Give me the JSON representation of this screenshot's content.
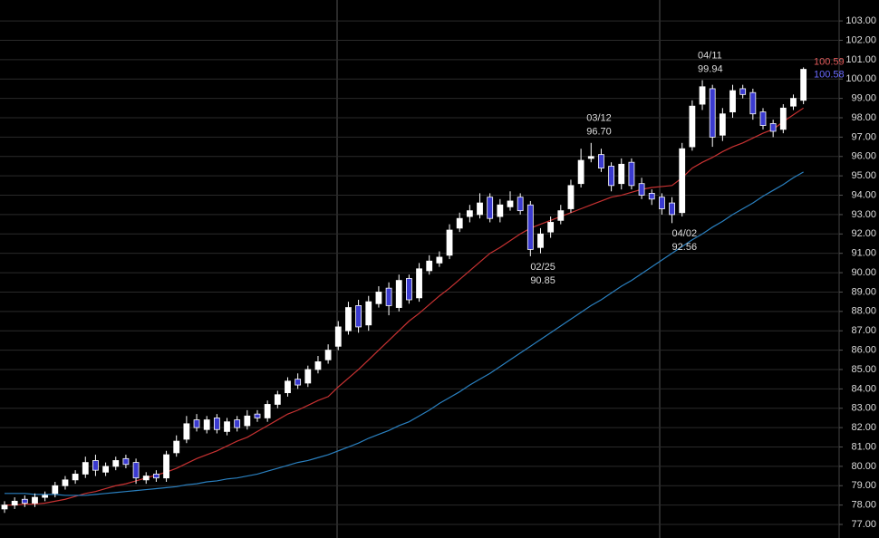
{
  "chart_data": {
    "type": "candlestick",
    "categories": [
      null,
      null,
      null,
      null,
      null,
      null,
      null,
      null,
      null,
      null,
      null,
      null,
      null,
      null,
      null,
      null,
      null,
      null,
      null,
      null,
      null,
      null,
      null,
      null,
      null,
      null,
      null,
      null,
      null,
      null,
      null,
      null,
      null,
      null,
      null,
      null,
      null,
      null,
      null,
      null,
      null,
      null,
      null,
      null,
      null,
      null,
      null,
      null,
      null,
      null,
      null,
      null,
      "02/25",
      null,
      null,
      null,
      null,
      null,
      "03/12",
      null,
      null,
      null,
      null,
      null,
      null,
      null,
      "04/02",
      null,
      null,
      "04/11",
      null,
      null,
      null,
      null,
      null,
      null,
      null,
      null,
      null,
      null
    ],
    "open": [
      77.8,
      78.0,
      78.3,
      78.1,
      78.4,
      78.6,
      79.0,
      79.3,
      79.6,
      80.3,
      79.7,
      80.0,
      80.4,
      80.2,
      79.3,
      79.6,
      79.4,
      80.7,
      81.4,
      82.4,
      81.9,
      82.5,
      81.8,
      82.4,
      82.1,
      82.7,
      82.5,
      83.2,
      83.8,
      84.5,
      84.3,
      85.0,
      85.5,
      86.2,
      87.0,
      88.3,
      87.3,
      88.4,
      89.2,
      88.2,
      89.7,
      88.7,
      90.1,
      90.5,
      90.9,
      92.3,
      92.9,
      93.0,
      93.9,
      92.9,
      93.4,
      93.9,
      93.5,
      91.3,
      92.1,
      92.7,
      93.3,
      94.6,
      95.9,
      96.1,
      95.5,
      94.6,
      95.7,
      94.6,
      94.1,
      93.9,
      93.6,
      93.1,
      96.5,
      98.7,
      99.5,
      97.1,
      98.3,
      99.5,
      99.3,
      98.3,
      97.7,
      97.4,
      98.6,
      98.9
    ],
    "high": [
      78.2,
      78.4,
      78.5,
      78.6,
      78.7,
      79.2,
      79.5,
      79.8,
      80.5,
      80.6,
      80.2,
      80.5,
      80.6,
      80.4,
      79.7,
      79.8,
      80.8,
      81.6,
      82.6,
      82.7,
      82.6,
      82.7,
      82.5,
      82.6,
      82.9,
      82.9,
      83.4,
      83.9,
      84.6,
      84.8,
      85.2,
      85.7,
      86.3,
      87.5,
      88.5,
      88.6,
      88.8,
      89.3,
      89.5,
      89.9,
      89.9,
      90.5,
      90.9,
      91.1,
      92.5,
      93.1,
      93.5,
      94.1,
      94.1,
      93.8,
      94.2,
      94.1,
      93.7,
      92.3,
      92.9,
      93.5,
      94.8,
      96.4,
      96.7,
      96.4,
      95.7,
      95.9,
      95.9,
      94.9,
      94.3,
      94.1,
      93.9,
      96.7,
      98.9,
      99.94,
      99.7,
      98.5,
      99.7,
      99.7,
      99.5,
      98.5,
      97.9,
      98.7,
      99.2,
      100.6
    ],
    "low": [
      77.6,
      77.8,
      77.9,
      77.9,
      78.2,
      78.4,
      78.8,
      79.1,
      79.4,
      79.5,
      79.5,
      79.8,
      79.9,
      79.1,
      79.1,
      79.2,
      79.2,
      80.5,
      81.2,
      81.8,
      81.7,
      81.7,
      81.6,
      81.8,
      81.9,
      82.3,
      82.3,
      83.0,
      83.6,
      84.0,
      84.1,
      84.8,
      85.3,
      86.0,
      86.8,
      86.9,
      87.0,
      88.2,
      87.8,
      88.0,
      88.4,
      88.5,
      89.9,
      90.3,
      90.7,
      92.1,
      92.6,
      92.8,
      92.6,
      92.6,
      93.2,
      93.0,
      90.85,
      91.0,
      91.8,
      92.5,
      93.1,
      94.4,
      95.7,
      95.2,
      94.2,
      94.3,
      94.3,
      93.8,
      93.5,
      93.0,
      92.56,
      92.9,
      96.3,
      98.4,
      96.5,
      96.8,
      98.0,
      99.0,
      97.9,
      97.4,
      97.0,
      97.2,
      98.4,
      98.7
    ],
    "close": [
      78.0,
      78.2,
      78.1,
      78.4,
      78.5,
      79.0,
      79.3,
      79.6,
      80.2,
      79.8,
      80.0,
      80.3,
      80.1,
      79.4,
      79.5,
      79.4,
      80.6,
      81.3,
      82.2,
      82.0,
      82.4,
      81.9,
      82.3,
      82.0,
      82.6,
      82.5,
      83.2,
      83.7,
      84.4,
      84.2,
      85.0,
      85.4,
      86.0,
      87.2,
      88.2,
      87.2,
      88.5,
      89.0,
      88.3,
      89.6,
      88.6,
      90.2,
      90.6,
      90.8,
      92.2,
      92.8,
      93.2,
      93.6,
      92.8,
      93.5,
      93.7,
      93.2,
      91.2,
      92.0,
      92.6,
      93.2,
      94.5,
      95.8,
      96.0,
      95.4,
      94.5,
      95.6,
      94.5,
      94.0,
      93.8,
      93.3,
      93.0,
      96.4,
      98.6,
      99.6,
      97.0,
      98.2,
      99.4,
      99.2,
      98.2,
      97.6,
      97.3,
      98.5,
      99.0,
      100.5
    ],
    "high_labels": [
      null,
      null,
      null,
      null,
      null,
      null,
      null,
      null,
      null,
      null,
      null,
      null,
      null,
      null,
      null,
      null,
      null,
      null,
      null,
      null,
      null,
      null,
      null,
      null,
      null,
      null,
      null,
      null,
      null,
      null,
      null,
      null,
      null,
      null,
      null,
      null,
      null,
      null,
      null,
      null,
      null,
      null,
      null,
      null,
      null,
      null,
      null,
      null,
      null,
      null,
      null,
      null,
      null,
      null,
      null,
      null,
      null,
      null,
      "96.70",
      null,
      null,
      null,
      null,
      null,
      null,
      null,
      null,
      null,
      null,
      "99.94",
      null,
      null,
      null,
      null,
      null,
      null,
      null,
      null,
      null,
      null
    ],
    "low_labels": [
      null,
      null,
      null,
      null,
      null,
      null,
      null,
      null,
      null,
      null,
      null,
      null,
      null,
      null,
      null,
      null,
      null,
      null,
      null,
      null,
      null,
      null,
      null,
      null,
      null,
      null,
      null,
      null,
      null,
      null,
      null,
      null,
      null,
      null,
      null,
      null,
      null,
      null,
      null,
      null,
      null,
      null,
      null,
      null,
      null,
      null,
      null,
      null,
      null,
      null,
      null,
      null,
      "90.85",
      null,
      null,
      null,
      null,
      null,
      null,
      null,
      null,
      null,
      null,
      null,
      null,
      null,
      "92.56",
      null,
      null,
      null,
      null,
      null,
      null,
      null,
      null,
      null,
      null,
      null,
      null,
      null
    ],
    "up_color": "#ffffff",
    "down_color": "#3a3ad0",
    "series": [
      {
        "color": "#c83232",
        "values": [
          78.0,
          78.0,
          78.05,
          78.05,
          78.1,
          78.2,
          78.3,
          78.45,
          78.6,
          78.7,
          78.85,
          79.0,
          79.1,
          79.25,
          79.4,
          79.55,
          79.7,
          79.9,
          80.15,
          80.4,
          80.6,
          80.8,
          81.05,
          81.3,
          81.5,
          81.8,
          82.1,
          82.4,
          82.7,
          82.9,
          83.15,
          83.4,
          83.6,
          84.1,
          84.55,
          85.0,
          85.5,
          86.0,
          86.5,
          87.0,
          87.5,
          87.9,
          88.35,
          88.8,
          89.2,
          89.65,
          90.1,
          90.55,
          91.0,
          91.3,
          91.65,
          92.0,
          92.3,
          92.5,
          92.7,
          92.9,
          93.1,
          93.3,
          93.5,
          93.7,
          93.9,
          94.0,
          94.15,
          94.3,
          94.4,
          94.45,
          94.5,
          94.9,
          95.4,
          95.7,
          95.95,
          96.25,
          96.5,
          96.7,
          96.95,
          97.2,
          97.4,
          97.8,
          98.15,
          98.5
        ]
      },
      {
        "color": "#2a80c0",
        "values": [
          78.6,
          78.6,
          78.6,
          78.55,
          78.55,
          78.55,
          78.5,
          78.5,
          78.5,
          78.55,
          78.6,
          78.65,
          78.7,
          78.75,
          78.8,
          78.85,
          78.9,
          78.95,
          79.05,
          79.1,
          79.2,
          79.25,
          79.35,
          79.4,
          79.5,
          79.6,
          79.75,
          79.9,
          80.05,
          80.2,
          80.3,
          80.45,
          80.6,
          80.8,
          81.0,
          81.2,
          81.45,
          81.65,
          81.85,
          82.1,
          82.3,
          82.6,
          82.9,
          83.25,
          83.55,
          83.85,
          84.2,
          84.5,
          84.8,
          85.15,
          85.5,
          85.85,
          86.2,
          86.55,
          86.9,
          87.25,
          87.6,
          87.95,
          88.3,
          88.6,
          88.95,
          89.3,
          89.6,
          89.95,
          90.3,
          90.65,
          91.0,
          91.35,
          91.7,
          92.0,
          92.35,
          92.65,
          93.0,
          93.3,
          93.6,
          93.95,
          94.25,
          94.55,
          94.9,
          95.2
        ]
      }
    ],
    "price_labels": [
      {
        "value": 100.59,
        "label": "100.59",
        "color": "#e05a5a"
      },
      {
        "value": 100.58,
        "label": "100.58",
        "color": "#6a6aff"
      }
    ],
    "ylim": [
      76.3,
      104.08
    ],
    "yticks": [
      {
        "value": 77,
        "label": "77.00"
      },
      {
        "value": 78,
        "label": "78.00"
      },
      {
        "value": 79,
        "label": "79.00"
      },
      {
        "value": 80,
        "label": "80.00"
      },
      {
        "value": 81,
        "label": "81.00"
      },
      {
        "value": 82,
        "label": "82.00"
      },
      {
        "value": 83,
        "label": "83.00"
      },
      {
        "value": 84,
        "label": "84.00"
      },
      {
        "value": 85,
        "label": "85.00"
      },
      {
        "value": 86,
        "label": "86.00"
      },
      {
        "value": 87,
        "label": "87.00"
      },
      {
        "value": 88,
        "label": "88.00"
      },
      {
        "value": 89,
        "label": "89.00"
      },
      {
        "value": 90,
        "label": "90.00"
      },
      {
        "value": 91,
        "label": "91.00"
      },
      {
        "value": 92,
        "label": "92.00"
      },
      {
        "value": 93,
        "label": "93.00"
      },
      {
        "value": 94,
        "label": "94.00"
      },
      {
        "value": 95,
        "label": "95.00"
      },
      {
        "value": 96,
        "label": "96.00"
      },
      {
        "value": 97,
        "label": "97.00"
      },
      {
        "value": 98,
        "label": "98.00"
      },
      {
        "value": 99,
        "label": "99.00"
      },
      {
        "value": 100,
        "label": "100.00"
      },
      {
        "value": 101,
        "label": "101.00"
      },
      {
        "value": 102,
        "label": "102.00"
      },
      {
        "value": 103,
        "label": "103.00"
      }
    ],
    "grid": true
  }
}
